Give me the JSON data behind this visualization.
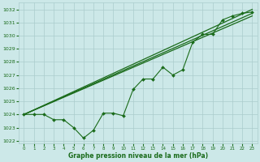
{
  "xlabel": "Graphe pression niveau de la mer (hPa)",
  "bg_color": "#cce8e8",
  "grid_color": "#aacccc",
  "line_color": "#1a6b1a",
  "xlim": [
    -0.5,
    23.5
  ],
  "ylim": [
    1021.8,
    1032.5
  ],
  "yticks": [
    1022,
    1023,
    1024,
    1025,
    1026,
    1027,
    1028,
    1029,
    1030,
    1031,
    1032
  ],
  "xticks": [
    0,
    1,
    2,
    3,
    4,
    5,
    6,
    7,
    8,
    9,
    10,
    11,
    12,
    13,
    14,
    15,
    16,
    17,
    18,
    19,
    20,
    21,
    22,
    23
  ],
  "main_x": [
    0,
    1,
    2,
    3,
    4,
    5,
    6,
    7,
    8,
    9,
    10,
    11,
    12,
    13,
    14,
    15,
    16,
    17,
    18,
    19,
    20,
    21,
    22,
    23
  ],
  "main_y": [
    1024.0,
    1024.0,
    1024.0,
    1023.6,
    1023.6,
    1023.0,
    1022.2,
    1022.8,
    1024.1,
    1024.1,
    1023.9,
    1025.9,
    1026.7,
    1026.7,
    1027.6,
    1027.0,
    1027.4,
    1029.5,
    1030.1,
    1030.1,
    1031.2,
    1031.5,
    1031.7,
    1031.8
  ],
  "line1_x": [
    0,
    23
  ],
  "line1_y": [
    1024.0,
    1031.5
  ],
  "line2_x": [
    0,
    23
  ],
  "line2_y": [
    1024.0,
    1031.7
  ],
  "line3_x": [
    0,
    23
  ],
  "line3_y": [
    1024.0,
    1032.0
  ]
}
